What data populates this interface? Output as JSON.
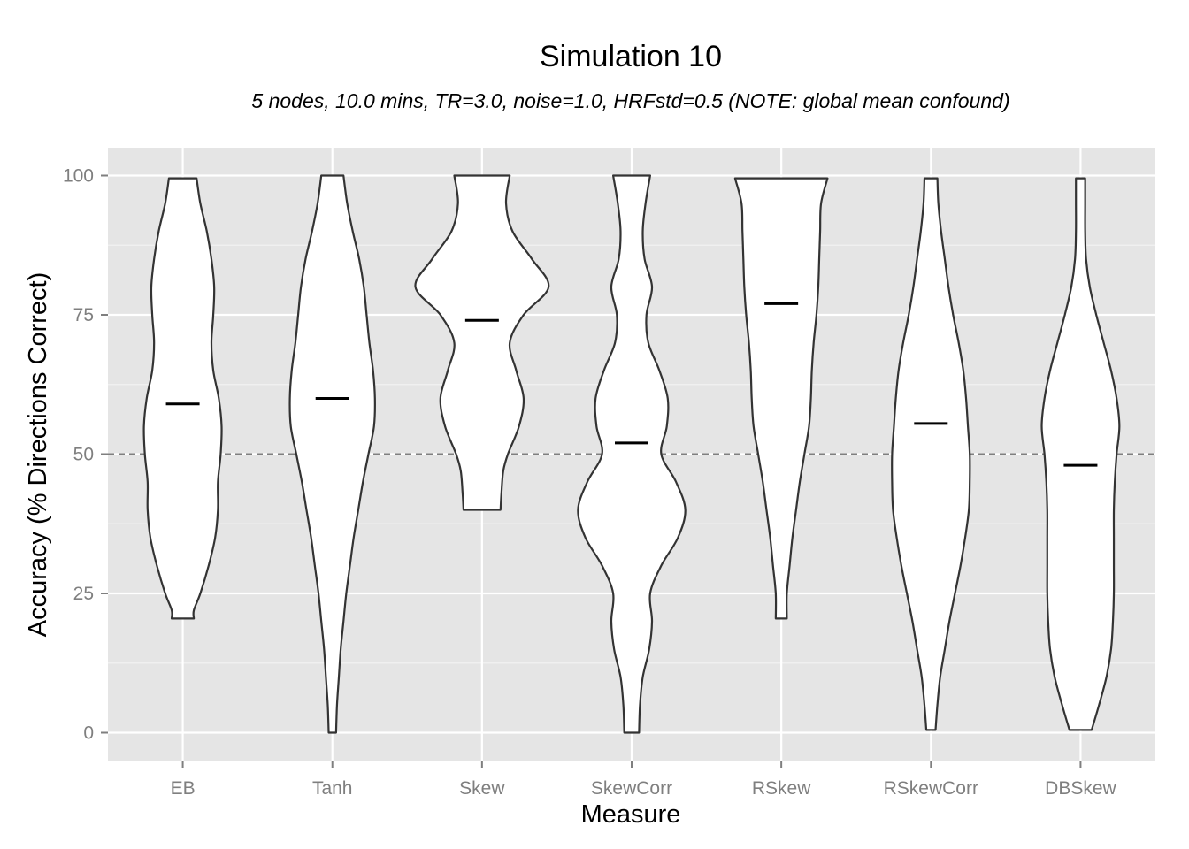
{
  "chart_data": {
    "type": "violin",
    "title": "Simulation 10",
    "subtitle": "5 nodes, 10.0 mins, TR=3.0, noise=1.0, HRFstd=0.5 (NOTE: global mean confound)",
    "xlabel": "Measure",
    "ylabel": "Accuracy (% Directions Correct)",
    "ylim": [
      -5,
      105
    ],
    "yticks": [
      0,
      25,
      50,
      75,
      100
    ],
    "reference_line": 50,
    "grid": true,
    "categories": [
      "EB",
      "Tanh",
      "Skew",
      "SkewCorr",
      "RSkew",
      "RSkewCorr",
      "DBSkew"
    ],
    "medians": [
      59,
      60,
      74,
      52,
      77,
      55.5,
      48
    ],
    "distributions": [
      {
        "name": "EB",
        "profile": [
          [
            20.5,
            1.2
          ],
          [
            22,
            1.2
          ],
          [
            25,
            1.9
          ],
          [
            30,
            2.8
          ],
          [
            35,
            3.5
          ],
          [
            40,
            3.8
          ],
          [
            45,
            3.8
          ],
          [
            50,
            4.1
          ],
          [
            55,
            4.2
          ],
          [
            60,
            3.9
          ],
          [
            65,
            3.3
          ],
          [
            70,
            3.1
          ],
          [
            75,
            3.3
          ],
          [
            80,
            3.4
          ],
          [
            85,
            3.1
          ],
          [
            90,
            2.6
          ],
          [
            95,
            1.9
          ],
          [
            99.5,
            1.5
          ]
        ]
      },
      {
        "name": "Tanh",
        "profile": [
          [
            0,
            0.4
          ],
          [
            5,
            0.5
          ],
          [
            10,
            0.7
          ],
          [
            15,
            0.9
          ],
          [
            20,
            1.2
          ],
          [
            25,
            1.5
          ],
          [
            30,
            1.9
          ],
          [
            35,
            2.3
          ],
          [
            40,
            2.8
          ],
          [
            45,
            3.3
          ],
          [
            50,
            3.9
          ],
          [
            55,
            4.5
          ],
          [
            60,
            4.6
          ],
          [
            65,
            4.4
          ],
          [
            70,
            4.0
          ],
          [
            75,
            3.7
          ],
          [
            80,
            3.4
          ],
          [
            85,
            2.9
          ],
          [
            90,
            2.2
          ],
          [
            95,
            1.6
          ],
          [
            100,
            1.2
          ]
        ]
      },
      {
        "name": "Skew",
        "profile": [
          [
            40,
            2.0
          ],
          [
            43,
            2.1
          ],
          [
            47,
            2.3
          ],
          [
            50,
            2.8
          ],
          [
            55,
            4.0
          ],
          [
            60,
            4.5
          ],
          [
            65,
            3.7
          ],
          [
            70,
            3.0
          ],
          [
            75,
            4.5
          ],
          [
            80,
            7.2
          ],
          [
            85,
            5.4
          ],
          [
            90,
            3.3
          ],
          [
            95,
            2.6
          ],
          [
            100,
            3.0
          ]
        ]
      },
      {
        "name": "SkewCorr",
        "profile": [
          [
            0,
            0.8
          ],
          [
            5,
            0.9
          ],
          [
            10,
            1.2
          ],
          [
            15,
            1.9
          ],
          [
            20,
            2.2
          ],
          [
            25,
            2.0
          ],
          [
            30,
            3.2
          ],
          [
            35,
            5.0
          ],
          [
            40,
            5.8
          ],
          [
            45,
            4.8
          ],
          [
            50,
            3.2
          ],
          [
            55,
            3.8
          ],
          [
            60,
            3.9
          ],
          [
            65,
            3.0
          ],
          [
            70,
            1.8
          ],
          [
            75,
            1.6
          ],
          [
            80,
            2.2
          ],
          [
            85,
            1.4
          ],
          [
            90,
            1.2
          ],
          [
            95,
            1.5
          ],
          [
            100,
            2.0
          ]
        ]
      },
      {
        "name": "RSkew",
        "profile": [
          [
            20.5,
            0.6
          ],
          [
            25,
            0.6
          ],
          [
            30,
            0.9
          ],
          [
            35,
            1.2
          ],
          [
            40,
            1.6
          ],
          [
            45,
            2.0
          ],
          [
            50,
            2.5
          ],
          [
            55,
            3.0
          ],
          [
            60,
            3.2
          ],
          [
            65,
            3.3
          ],
          [
            70,
            3.5
          ],
          [
            75,
            3.8
          ],
          [
            80,
            4.0
          ],
          [
            85,
            4.1
          ],
          [
            90,
            4.2
          ],
          [
            95,
            4.3
          ],
          [
            99.5,
            5.0
          ]
        ]
      },
      {
        "name": "RSkewCorr",
        "profile": [
          [
            0.5,
            0.5
          ],
          [
            5,
            0.7
          ],
          [
            10,
            1.0
          ],
          [
            15,
            1.5
          ],
          [
            20,
            2.0
          ],
          [
            25,
            2.6
          ],
          [
            30,
            3.2
          ],
          [
            35,
            3.7
          ],
          [
            40,
            4.1
          ],
          [
            45,
            4.2
          ],
          [
            50,
            4.2
          ],
          [
            55,
            4.0
          ],
          [
            60,
            3.8
          ],
          [
            65,
            3.5
          ],
          [
            70,
            3.0
          ],
          [
            75,
            2.4
          ],
          [
            80,
            1.9
          ],
          [
            85,
            1.5
          ],
          [
            90,
            1.1
          ],
          [
            95,
            0.8
          ],
          [
            99.5,
            0.7
          ]
        ]
      },
      {
        "name": "DBSkew",
        "profile": [
          [
            0.5,
            1.2
          ],
          [
            5,
            2.0
          ],
          [
            10,
            2.8
          ],
          [
            15,
            3.3
          ],
          [
            20,
            3.5
          ],
          [
            25,
            3.6
          ],
          [
            30,
            3.6
          ],
          [
            35,
            3.6
          ],
          [
            40,
            3.6
          ],
          [
            45,
            3.7
          ],
          [
            50,
            3.9
          ],
          [
            55,
            4.2
          ],
          [
            60,
            3.9
          ],
          [
            65,
            3.3
          ],
          [
            70,
            2.5
          ],
          [
            75,
            1.7
          ],
          [
            80,
            1.0
          ],
          [
            85,
            0.6
          ],
          [
            90,
            0.5
          ],
          [
            95,
            0.5
          ],
          [
            99.5,
            0.5
          ]
        ]
      }
    ]
  }
}
